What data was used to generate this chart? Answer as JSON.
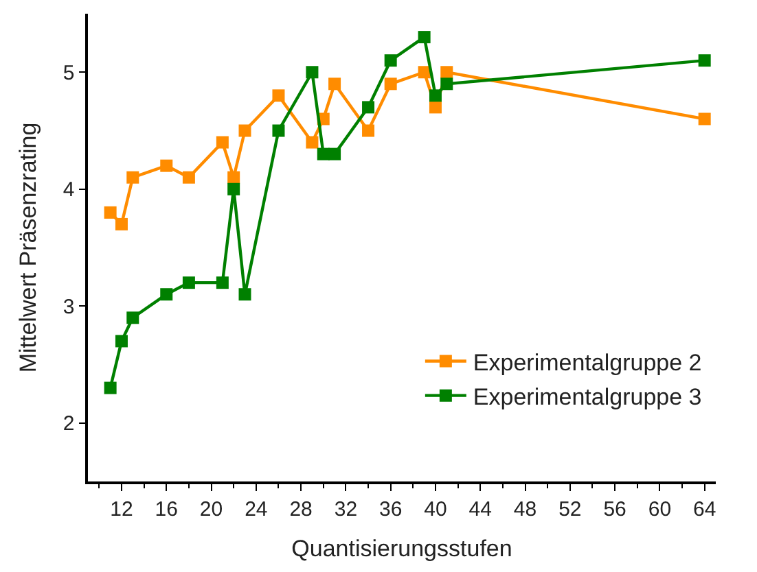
{
  "chart_data": {
    "type": "line",
    "xlabel": "Quantisierungsstufen",
    "ylabel": "Mittelwert Präsenzrating",
    "x": [
      11,
      12,
      13,
      16,
      18,
      21,
      22,
      23,
      26,
      29,
      30,
      31,
      34,
      36,
      39,
      40,
      41,
      64
    ],
    "series": [
      {
        "name": "Experimentalgruppe 2",
        "color": "#ff8c00",
        "values": [
          3.8,
          3.7,
          4.1,
          4.2,
          4.1,
          4.4,
          4.1,
          4.5,
          4.8,
          4.4,
          4.6,
          4.9,
          4.5,
          4.9,
          5.0,
          4.7,
          5.0,
          4.6
        ]
      },
      {
        "name": "Experimentalgruppe 3",
        "color": "#008000",
        "values": [
          2.3,
          2.7,
          2.9,
          3.1,
          3.2,
          3.2,
          4.0,
          3.1,
          4.5,
          5.0,
          4.3,
          4.3,
          4.7,
          5.1,
          5.3,
          4.8,
          4.9,
          5.1
        ]
      }
    ],
    "xlim": [
      9,
      65
    ],
    "xticks": [
      12,
      16,
      20,
      24,
      28,
      32,
      36,
      40,
      44,
      48,
      52,
      56,
      60,
      64
    ],
    "ylim": [
      1.5,
      5.5
    ],
    "yticks": [
      2,
      3,
      4,
      5
    ],
    "legend": "bottom right",
    "marker": "square",
    "line_style": "solid"
  }
}
